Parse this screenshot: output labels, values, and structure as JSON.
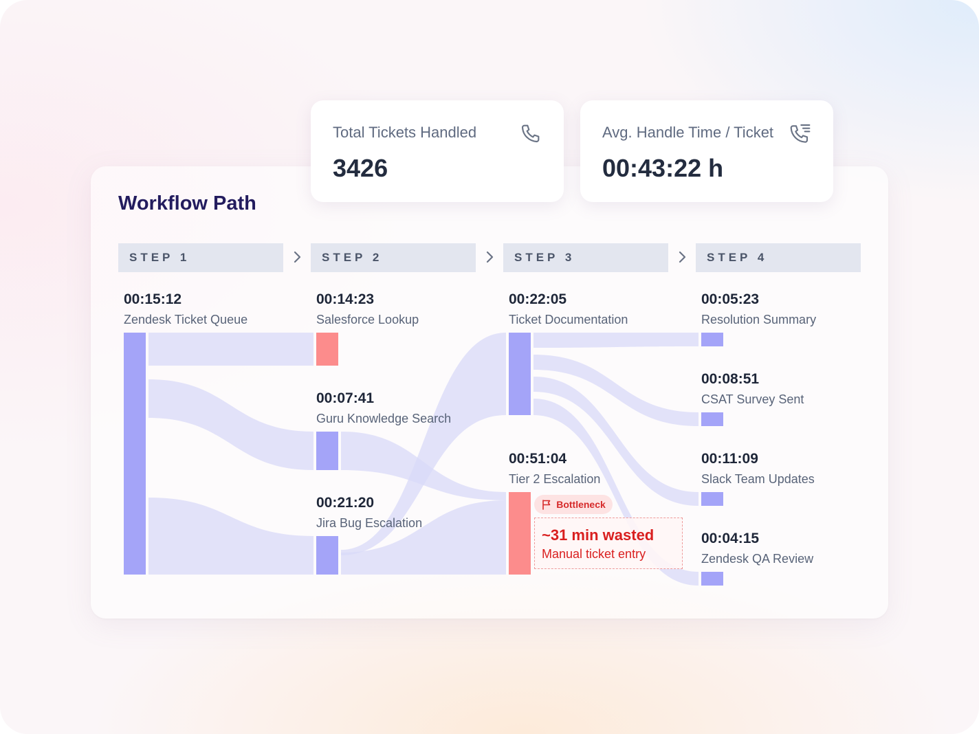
{
  "stats": [
    {
      "label": "Total Tickets Handled",
      "value": "3426",
      "icon": "phone-icon"
    },
    {
      "label": "Avg. Handle Time / Ticket",
      "value": "00:43:22 h",
      "icon": "phone-list-icon"
    }
  ],
  "workflow": {
    "title": "Workflow Path",
    "steps": [
      "STEP 1",
      "STEP 2",
      "STEP 3",
      "STEP 4"
    ],
    "nodes": [
      {
        "id": "zendesk-ticket-queue",
        "time": "00:15:12",
        "label": "Zendesk Ticket Queue",
        "status": "normal"
      },
      {
        "id": "salesforce-lookup",
        "time": "00:14:23",
        "label": "Salesforce Lookup",
        "status": "bottleneck"
      },
      {
        "id": "guru-knowledge-search",
        "time": "00:07:41",
        "label": "Guru Knowledge Search",
        "status": "normal"
      },
      {
        "id": "jira-bug-escalation",
        "time": "00:21:20",
        "label": "Jira Bug Escalation",
        "status": "normal"
      },
      {
        "id": "ticket-documentation",
        "time": "00:22:05",
        "label": "Ticket Documentation",
        "status": "normal"
      },
      {
        "id": "tier-2-escalation",
        "time": "00:51:04",
        "label": "Tier 2 Escalation",
        "status": "bottleneck"
      },
      {
        "id": "resolution-summary",
        "time": "00:05:23",
        "label": "Resolution Summary",
        "status": "normal"
      },
      {
        "id": "csat-survey-sent",
        "time": "00:08:51",
        "label": "CSAT Survey Sent",
        "status": "normal"
      },
      {
        "id": "slack-team-updates",
        "time": "00:11:09",
        "label": "Slack Team Updates",
        "status": "normal"
      },
      {
        "id": "zendesk-qa-review",
        "time": "00:04:15",
        "label": "Zendesk QA Review",
        "status": "normal"
      }
    ],
    "bottleneck": {
      "badge": "Bottleneck",
      "headline": "~31 min wasted",
      "detail": "Manual ticket entry"
    }
  },
  "colors": {
    "node": "#a4a4f8",
    "bottleneck_node": "#fc8c8c",
    "flow": "#d8d9f8",
    "title": "#231c5e",
    "alert": "#d91f1f"
  }
}
